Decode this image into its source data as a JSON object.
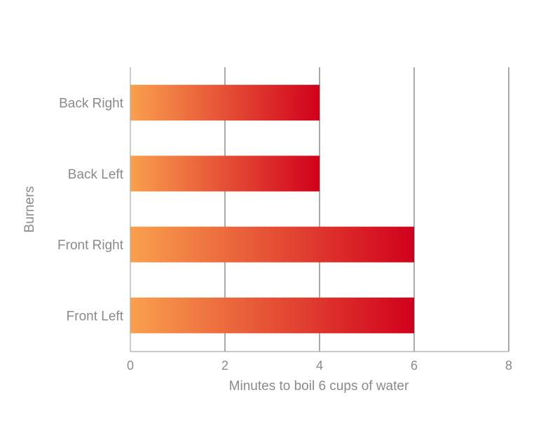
{
  "chart_data": {
    "type": "bar",
    "orientation": "horizontal",
    "categories": [
      "Back Right",
      "Back Left",
      "Front Right",
      "Front Left"
    ],
    "values": [
      4,
      4,
      6,
      6
    ],
    "xlabel": "Minutes to boil 6 cups of water",
    "ylabel": "Burners",
    "xlim": [
      0,
      8
    ],
    "xticks": [
      0,
      2,
      4,
      6,
      8
    ],
    "grid": true,
    "legend": "none",
    "colors": {
      "gradient_start": "#f9a04e",
      "gradient_end": "#d1001c"
    }
  }
}
